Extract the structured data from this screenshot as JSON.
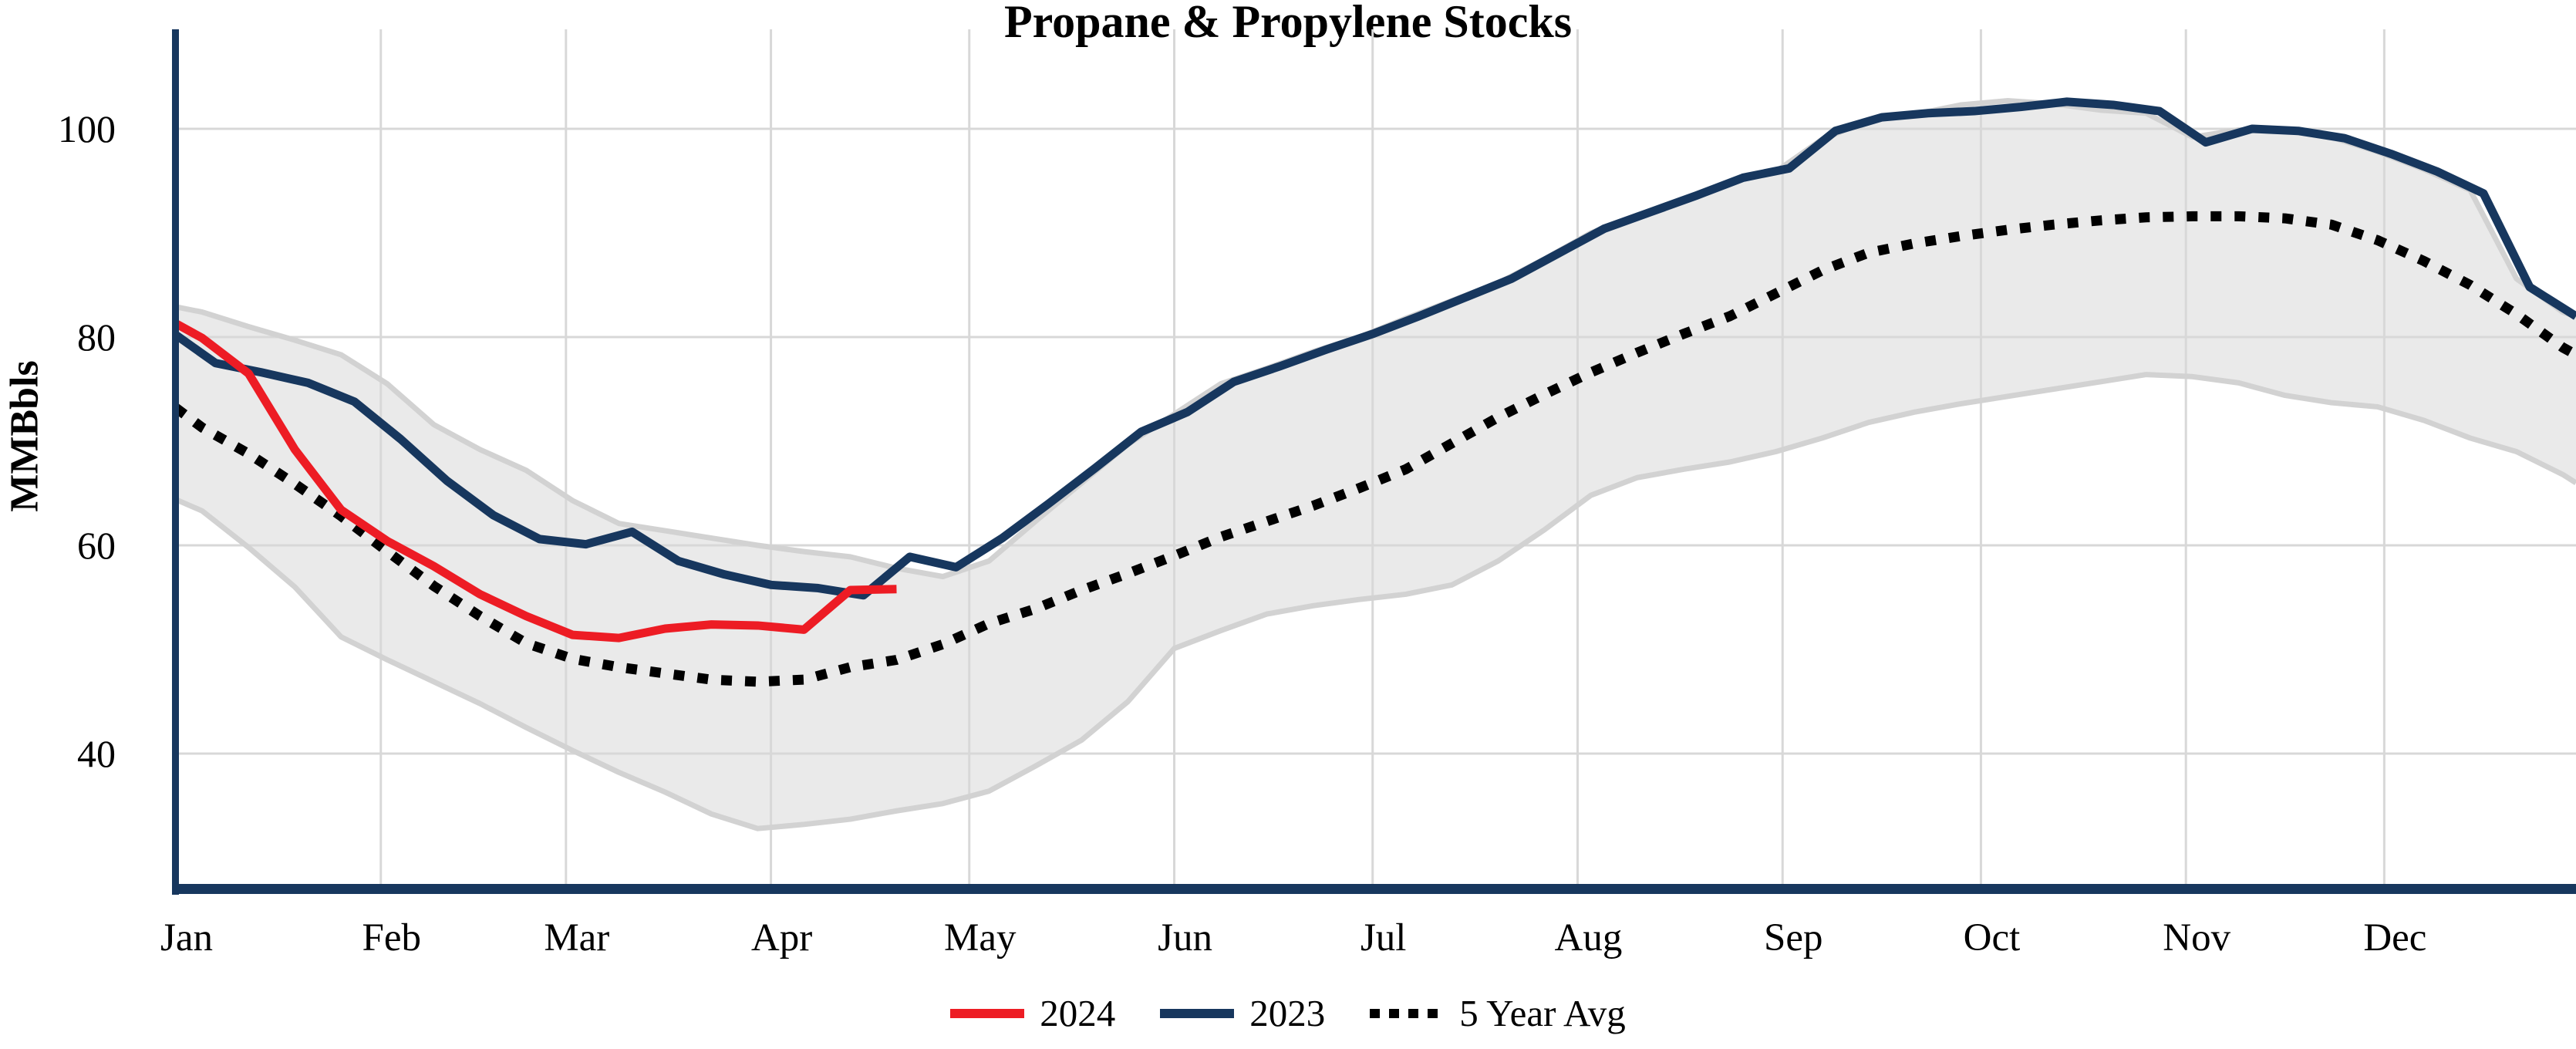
{
  "title": "Propane & Propylene Stocks",
  "y_axis": {
    "label": "MMBbls",
    "ticks": [
      100,
      80,
      60,
      40
    ],
    "range_top": 109.5,
    "range_bottom": 27.0
  },
  "x_axis": {
    "month_labels": [
      "Jan",
      "Feb",
      "Mar",
      "Apr",
      "May",
      "Jun",
      "Jul",
      "Aug",
      "Sep",
      "Oct",
      "Nov",
      "Dec"
    ],
    "month_start_days": [
      1,
      32,
      60,
      91,
      121,
      152,
      182,
      213,
      244,
      274,
      305,
      335
    ],
    "days_in_year": 364
  },
  "legend": [
    {
      "label": "2024",
      "style": "solid",
      "color": "#ed1c24"
    },
    {
      "label": "2023",
      "style": "solid",
      "color": "#17375e"
    },
    {
      "label": "5 Year Avg",
      "style": "dashed",
      "color": "#000000"
    }
  ],
  "colors": {
    "red_2024": "#ed1c24",
    "navy_2023": "#17375e",
    "avg_black": "#000000",
    "band_fill": "#eaeaea",
    "band_edge": "#d2d2d2",
    "gridline": "#d8d8d8",
    "axis_spine": "#17375e",
    "text": "#000000",
    "background": "#ffffff"
  },
  "chart_data": {
    "type": "line",
    "title": "Propane & Propylene Stocks",
    "ylabel": "MMBbls",
    "ylim": [
      27,
      109.5
    ],
    "grid": true,
    "legend_position": "bottom",
    "unit": "MMBbls (million barrels), weekly propane & propylene stocks",
    "series": [
      {
        "name": "2024",
        "color": "#ed1c24",
        "line": "solid",
        "days": [
          1,
          5,
          12,
          19,
          26,
          33,
          40,
          47,
          54,
          61,
          68,
          75,
          82,
          89,
          96,
          103,
          110
        ],
        "values": [
          81.3,
          79.9,
          76.5,
          69.2,
          63.4,
          60.4,
          58.0,
          55.3,
          53.2,
          51.4,
          51.1,
          52.0,
          52.4,
          52.3,
          51.9,
          55.7,
          55.8
        ]
      },
      {
        "name": "2023",
        "color": "#17375e",
        "line": "solid",
        "days": [
          1,
          7,
          14,
          21,
          28,
          35,
          42,
          49,
          56,
          63,
          70,
          77,
          84,
          91,
          98,
          105,
          112,
          119,
          126,
          133,
          140,
          147,
          154,
          161,
          168,
          175,
          182,
          189,
          196,
          203,
          210,
          217,
          224,
          231,
          238,
          245,
          252,
          259,
          266,
          273,
          280,
          287,
          294,
          301,
          308,
          315,
          322,
          329,
          336,
          343,
          350,
          357,
          364
        ],
        "values": [
          80.2,
          77.5,
          76.6,
          75.6,
          73.8,
          70.2,
          66.2,
          62.9,
          60.6,
          60.1,
          61.3,
          58.5,
          57.2,
          56.2,
          55.9,
          55.2,
          58.9,
          57.9,
          60.7,
          64.0,
          67.4,
          70.9,
          72.8,
          75.7,
          77.2,
          78.8,
          80.3,
          82.0,
          83.8,
          85.6,
          88.0,
          90.4,
          92.0,
          93.6,
          95.3,
          96.2,
          99.8,
          101.1,
          101.5,
          101.7,
          102.1,
          102.6,
          102.3,
          101.7,
          98.7,
          100.0,
          99.8,
          99.1,
          97.6,
          95.9,
          93.8,
          84.8,
          82.0
        ]
      },
      {
        "name": "5 Year Avg",
        "color": "#000000",
        "line": "dashed",
        "days": [
          1,
          5,
          12,
          19,
          26,
          33,
          40,
          47,
          54,
          61,
          68,
          75,
          82,
          89,
          96,
          103,
          110,
          117,
          124,
          131,
          138,
          145,
          152,
          159,
          166,
          173,
          180,
          187,
          194,
          201,
          208,
          215,
          222,
          229,
          236,
          243,
          250,
          257,
          264,
          271,
          278,
          285,
          292,
          299,
          306,
          313,
          320,
          327,
          334,
          341,
          348,
          355,
          362,
          364
        ],
        "values": [
          73.2,
          71.3,
          68.8,
          65.9,
          62.8,
          59.4,
          56.1,
          53.2,
          50.6,
          49.1,
          48.3,
          47.7,
          47.1,
          46.9,
          47.1,
          48.3,
          49.0,
          50.5,
          52.5,
          53.9,
          55.7,
          57.3,
          59.0,
          60.8,
          62.3,
          63.8,
          65.5,
          67.3,
          69.8,
          72.3,
          74.5,
          76.6,
          78.5,
          80.3,
          82.0,
          84.2,
          86.4,
          88.1,
          89.0,
          89.7,
          90.3,
          90.8,
          91.2,
          91.5,
          91.6,
          91.6,
          91.4,
          90.8,
          89.3,
          87.3,
          85.0,
          82.2,
          79.0,
          78.3
        ]
      }
    ],
    "band": {
      "name": "5 Year Range",
      "fill": "#eaeaea",
      "edge": "#d2d2d2",
      "days": [
        1,
        5,
        12,
        19,
        26,
        33,
        40,
        47,
        54,
        61,
        68,
        75,
        82,
        89,
        96,
        103,
        110,
        117,
        124,
        131,
        138,
        145,
        152,
        159,
        166,
        173,
        180,
        187,
        194,
        201,
        208,
        215,
        222,
        229,
        236,
        243,
        250,
        257,
        264,
        271,
        278,
        285,
        292,
        299,
        306,
        313,
        320,
        327,
        334,
        341,
        348,
        355,
        362,
        364
      ],
      "lower": [
        64.4,
        63.3,
        59.8,
        56.0,
        51.2,
        49.0,
        46.9,
        44.8,
        42.5,
        40.3,
        38.2,
        36.3,
        34.2,
        32.8,
        33.2,
        33.7,
        34.5,
        35.2,
        36.4,
        38.8,
        41.3,
        45.0,
        50.1,
        51.8,
        53.4,
        54.2,
        54.8,
        55.3,
        56.2,
        58.5,
        61.5,
        64.8,
        66.5,
        67.3,
        68.0,
        69.0,
        70.3,
        71.8,
        72.8,
        73.6,
        74.3,
        75.0,
        75.7,
        76.4,
        76.2,
        75.6,
        74.4,
        73.7,
        73.3,
        72.0,
        70.3,
        69.0,
        66.8,
        66.0
      ],
      "upper": [
        82.9,
        82.4,
        81.0,
        79.7,
        78.3,
        75.5,
        71.6,
        69.2,
        67.2,
        64.3,
        62.1,
        61.4,
        60.7,
        60.0,
        59.4,
        58.9,
        57.8,
        57.0,
        58.5,
        62.3,
        66.0,
        69.7,
        72.6,
        75.5,
        77.0,
        78.6,
        80.0,
        81.8,
        83.5,
        85.2,
        87.5,
        90.0,
        91.7,
        93.2,
        94.9,
        95.9,
        99.0,
        100.8,
        101.4,
        102.3,
        102.7,
        102.4,
        101.8,
        101.5,
        99.2,
        99.9,
        99.8,
        99.2,
        97.8,
        96.1,
        94.1,
        85.6,
        82.4,
        82.0
      ]
    }
  }
}
